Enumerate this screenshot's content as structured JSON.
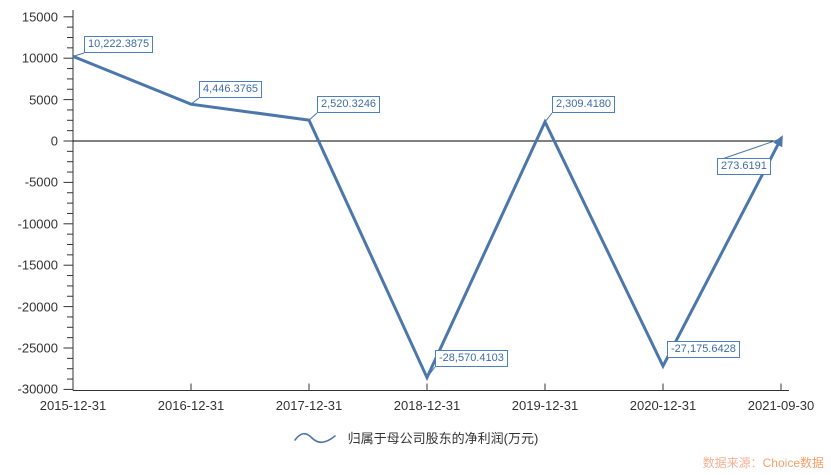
{
  "chart_data": {
    "type": "line",
    "title": "",
    "xlabel": "",
    "ylabel": "",
    "categories": [
      "2015-12-31",
      "2016-12-31",
      "2017-12-31",
      "2018-12-31",
      "2019-12-31",
      "2020-12-31",
      "2021-09-30"
    ],
    "series": [
      {
        "name": "归属于母公司股东的净利润(万元)",
        "values": [
          10222.3875,
          4446.3765,
          2520.3246,
          -28570.4103,
          2309.418,
          -27175.6428,
          273.6191
        ]
      }
    ],
    "point_labels": [
      "10,222.3875",
      "4,446.3765",
      "2,520.3246",
      "-28,570.4103",
      "2,309.4180",
      "-27,175.6428",
      "273.6191"
    ],
    "y_ticks": [
      15000,
      10000,
      5000,
      0,
      -5000,
      -10000,
      -15000,
      -20000,
      -25000,
      -30000
    ],
    "ylim": [
      -30000,
      15000
    ],
    "minor_tick_step": 1250,
    "grid": false,
    "zero_line": true,
    "legend_position": "bottom",
    "colors": {
      "line": "#4b77ab",
      "label_border": "#4d7ebf",
      "label_text": "#3e6ca5",
      "axis": "#333333",
      "zero_line": "#000000"
    }
  },
  "legend": {
    "label": "归属于母公司股东的净利润(万元)"
  },
  "watermark": {
    "prefix": "数据来源：",
    "brand": "Choice数据"
  }
}
